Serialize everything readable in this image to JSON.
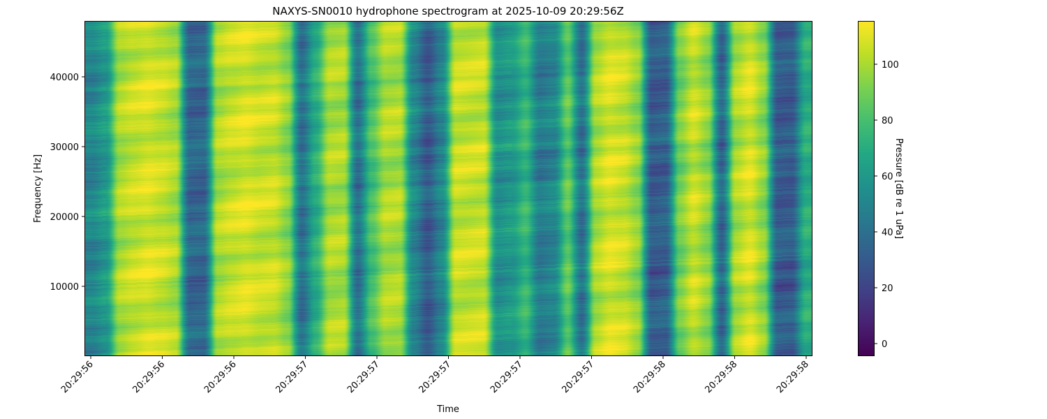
{
  "chart_data": {
    "type": "heatmap",
    "title": "NAXYS-SN0010 hydrophone spectrogram at 2025-10-09 20:29:56Z",
    "xlabel": "Time",
    "ylabel": "Frequency [Hz]",
    "x_tick_labels": [
      "20:29:56",
      "20:29:56",
      "20:29:56",
      "20:29:57",
      "20:29:57",
      "20:29:57",
      "20:29:57",
      "20:29:57",
      "20:29:58",
      "20:29:58",
      "20:29:58"
    ],
    "y_ticks": [
      10000,
      20000,
      30000,
      40000
    ],
    "ylim": [
      0,
      48000
    ],
    "colormap": "viridis",
    "colorbar": {
      "label": "Pressure [dB re 1 uPa]",
      "ticks": [
        0,
        20,
        40,
        60,
        80,
        100
      ],
      "range": [
        -4.5,
        115.5
      ]
    },
    "time_bin_levels_db": [
      50,
      60,
      100,
      105,
      108,
      105,
      100,
      35,
      35,
      100,
      105,
      108,
      105,
      105,
      95,
      40,
      70,
      100,
      100,
      40,
      80,
      100,
      100,
      50,
      30,
      50,
      105,
      105,
      105,
      55,
      60,
      75,
      45,
      50,
      85,
      40,
      100,
      108,
      105,
      95,
      30,
      32,
      90,
      105,
      95,
      35,
      100,
      108,
      95,
      30,
      30,
      70
    ]
  }
}
